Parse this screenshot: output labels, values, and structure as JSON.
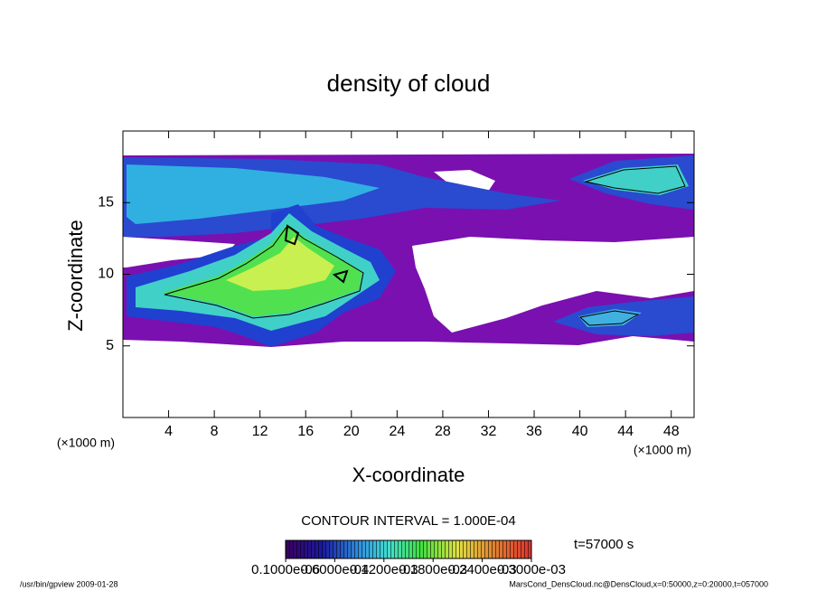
{
  "chart_data": {
    "type": "contour",
    "title": "density of cloud",
    "xlabel": "X-coordinate",
    "ylabel": "Z-coordinate",
    "x_unit": "(×1000 m)",
    "y_unit": "(×1000 m)",
    "xlim": [
      0,
      50
    ],
    "xticks": [
      4,
      8,
      12,
      16,
      20,
      24,
      28,
      32,
      36,
      40,
      44,
      48
    ],
    "ylim": [
      0,
      20
    ],
    "yticks": [
      5,
      10,
      15
    ],
    "contour_interval": "CONTOUR INTERVAL = 1.000E-04",
    "time_label": "t=57000 s",
    "colorbar": {
      "lim": [
        0,
        0.0003
      ],
      "ticks": [
        {
          "value": 1e-07,
          "label": "0.1000e-06"
        },
        {
          "value": 6e-05,
          "label": "0.6000e-04"
        },
        {
          "value": 0.00012,
          "label": "0.1200e-03"
        },
        {
          "value": 0.00018,
          "label": "0.1800e-03"
        },
        {
          "value": 0.00024,
          "label": "0.2400e-03"
        },
        {
          "value": 0.0003,
          "label": "0.3000e-03"
        }
      ]
    },
    "footer_left": "/usr/bin/gpview  2009-01-28",
    "footer_right": "MarsCond_DensCloud.nc@DensCloud,x=0:50000,z=0:20000,t=057000"
  }
}
